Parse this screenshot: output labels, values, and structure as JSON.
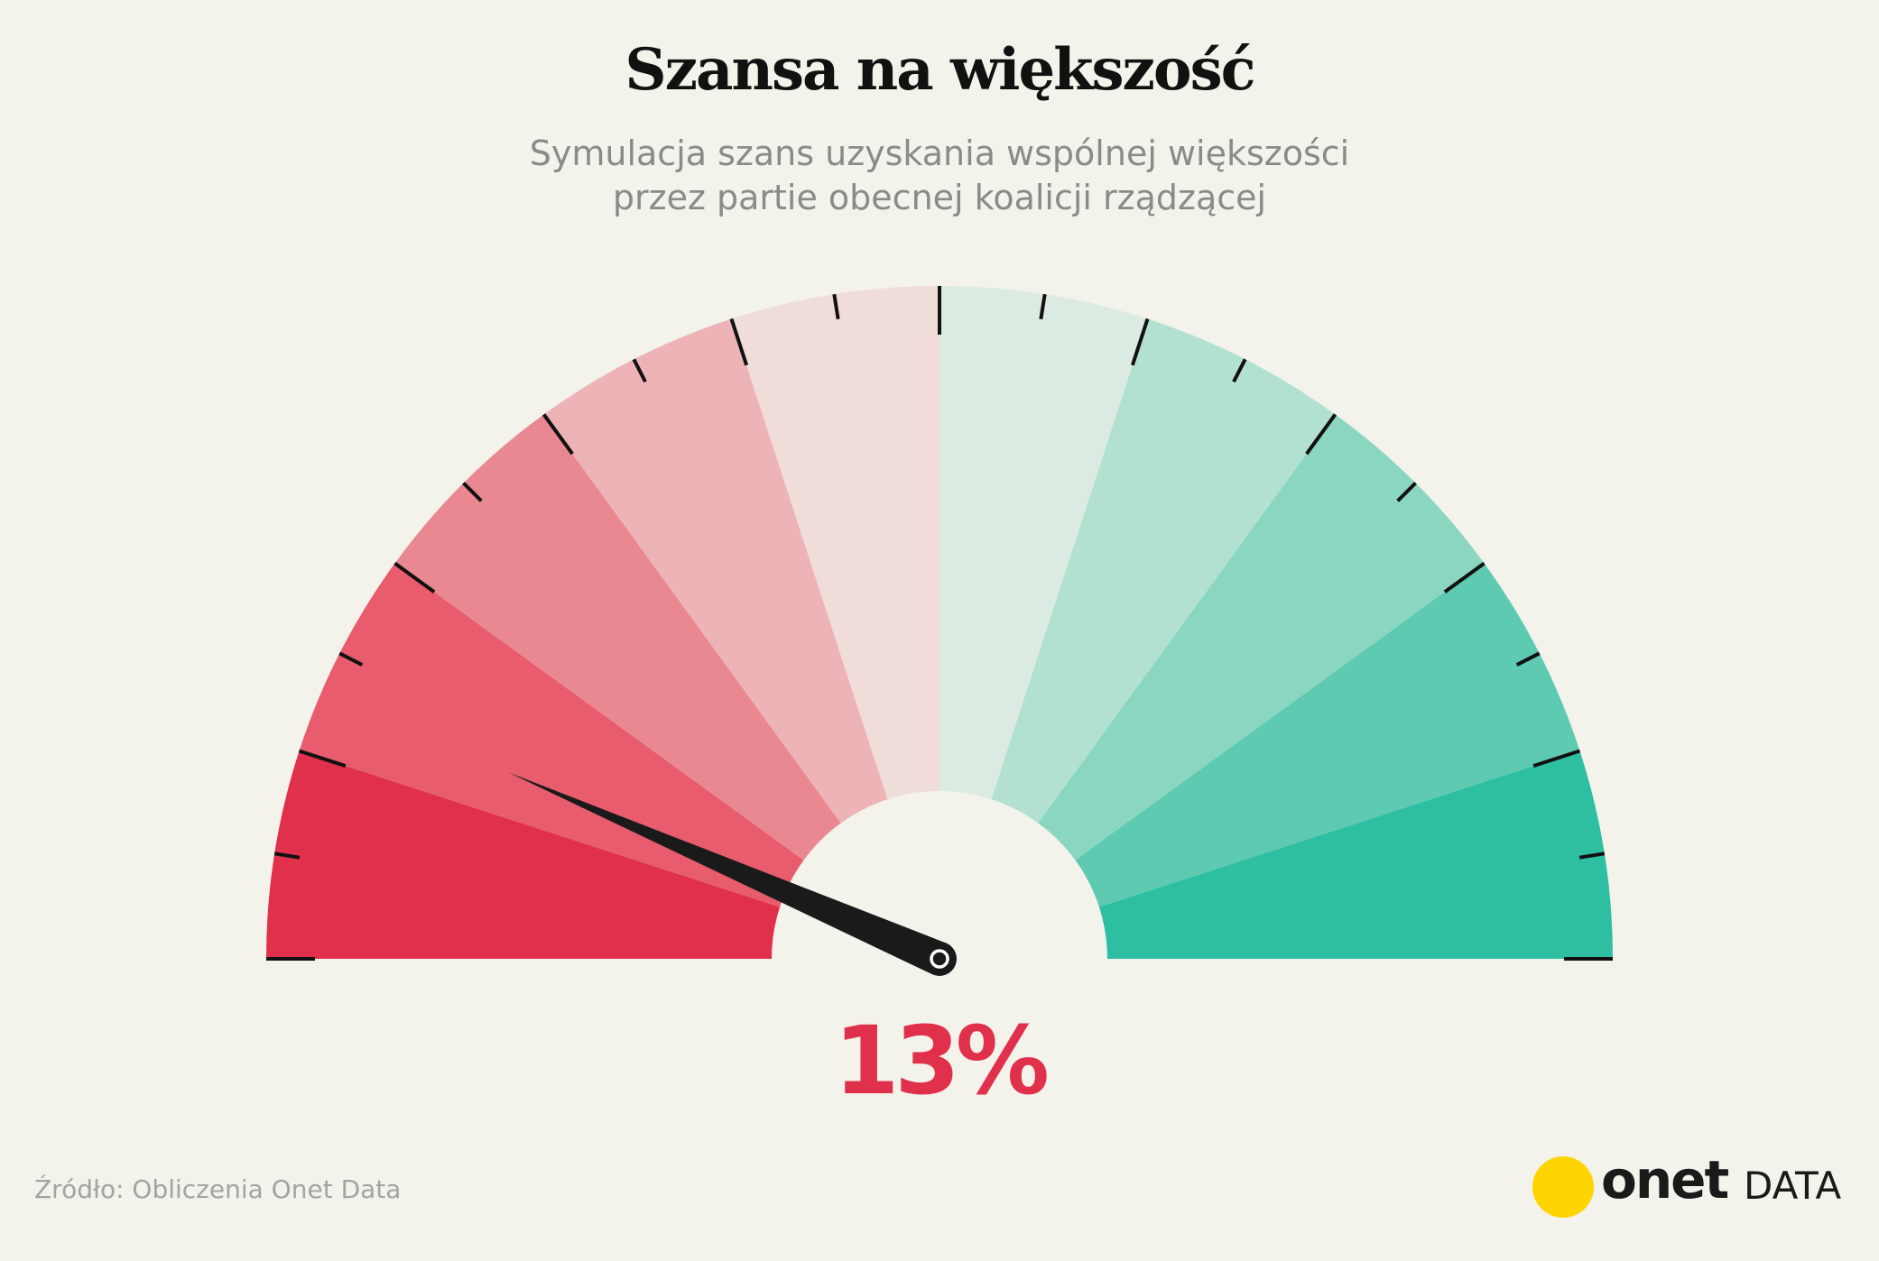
{
  "chart_data": {
    "type": "gauge",
    "title": "Szansa na większość",
    "subtitle_line1": "Symulacja szans uzyskania wspólnej większości",
    "subtitle_line2": "przez partie obecnej koalicji rządzącej",
    "value": 13,
    "value_label": "13%",
    "range": [
      0,
      100
    ],
    "bands": [
      {
        "from": 0,
        "to": 10,
        "color": "#e0304b"
      },
      {
        "from": 10,
        "to": 20,
        "color": "#e85c6e"
      },
      {
        "from": 20,
        "to": 30,
        "color": "#ea8891"
      },
      {
        "from": 30,
        "to": 40,
        "color": "#eeb3b6"
      },
      {
        "from": 40,
        "to": 50,
        "color": "#f0ddda"
      },
      {
        "from": 50,
        "to": 60,
        "color": "#dcebe1"
      },
      {
        "from": 60,
        "to": 70,
        "color": "#b3e1d1"
      },
      {
        "from": 70,
        "to": 80,
        "color": "#8ad6c1"
      },
      {
        "from": 80,
        "to": 90,
        "color": "#5dcab1"
      },
      {
        "from": 90,
        "to": 100,
        "color": "#2ebfa3"
      }
    ],
    "major_tick_step": 10,
    "minor_tick_step": 5,
    "needle_color": "#1a1a1a",
    "value_color": "#e0304b",
    "background": "#f3f2eb"
  },
  "footer": {
    "source": "Źródło: Obliczenia Onet Data",
    "logo_word": "onet",
    "logo_suffix": "DATA",
    "logo_dot_color": "#ffd400"
  }
}
